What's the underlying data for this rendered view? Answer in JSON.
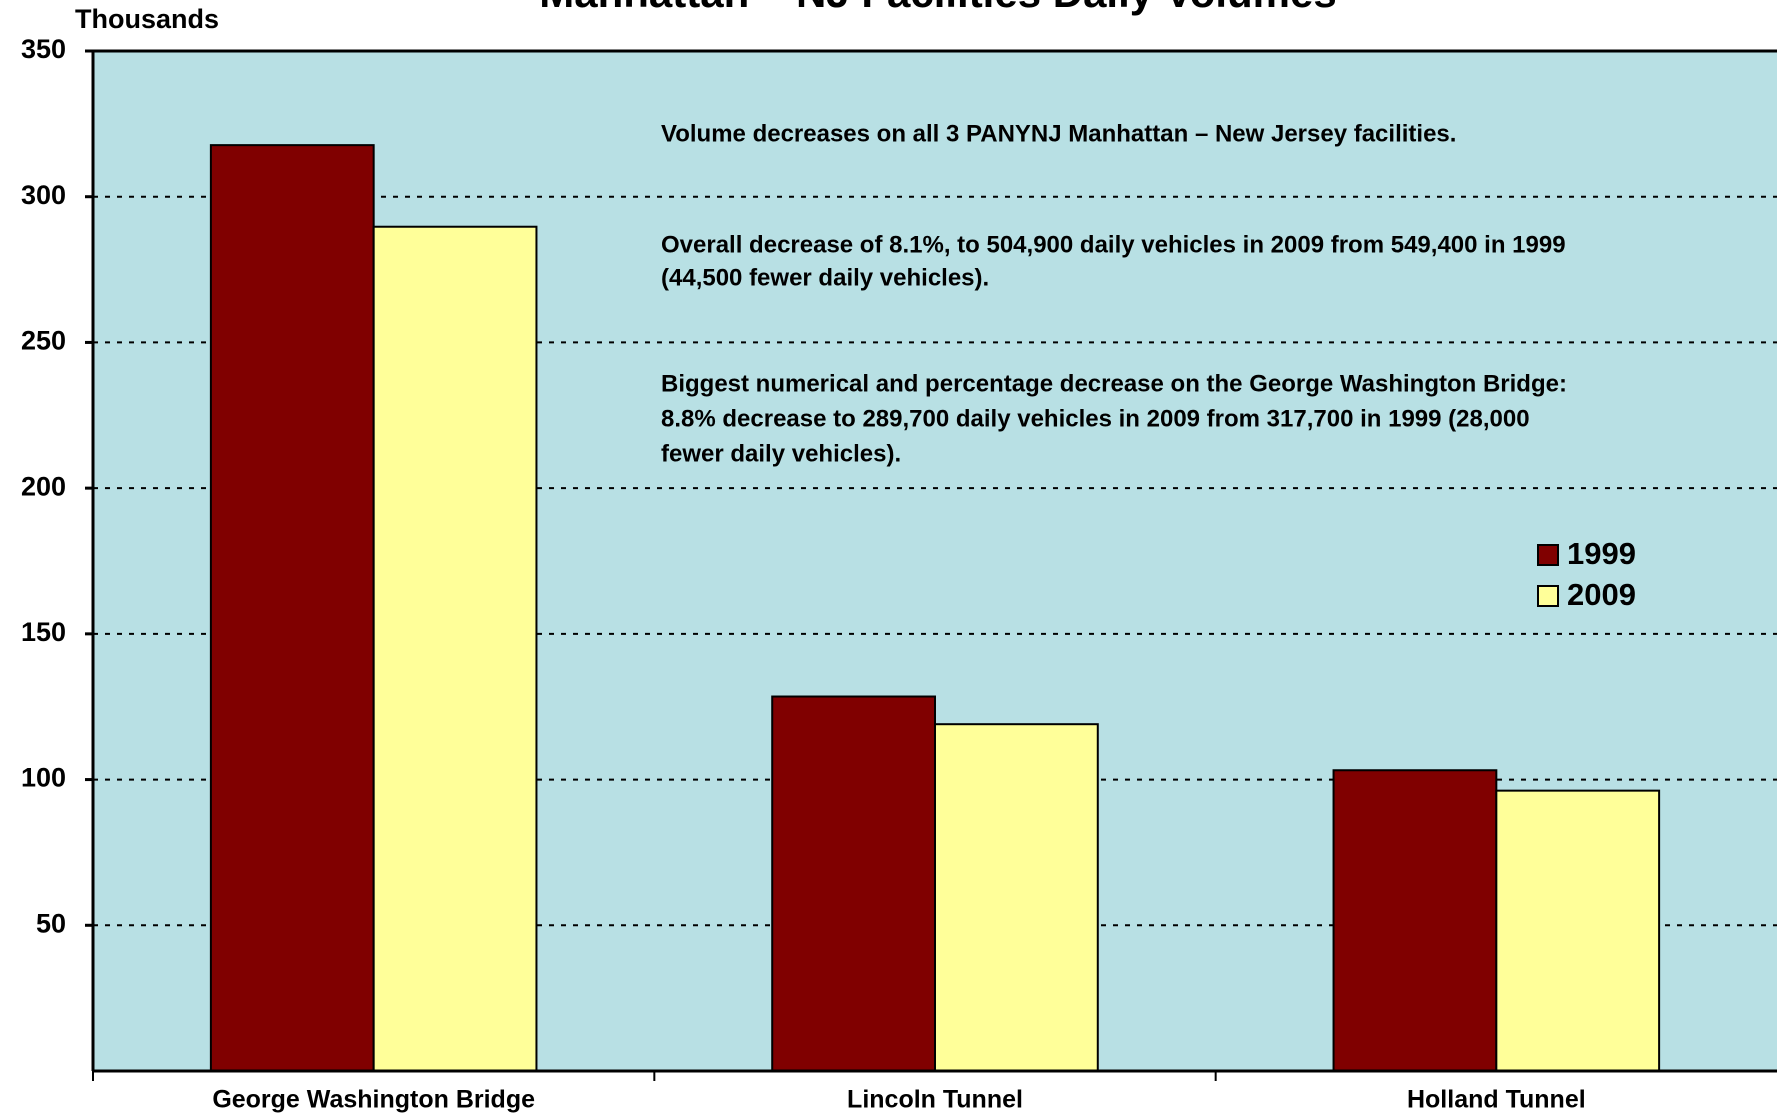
{
  "chart_data": {
    "type": "bar",
    "title": "Manhattan – NJ Facilities Daily Volumes",
    "y_axis_label": "Thousands",
    "categories": [
      "George Washington Bridge",
      "Lincoln Tunnel",
      "Holland Tunnel"
    ],
    "series": [
      {
        "name": "1999",
        "color": "#800000",
        "values": [
          317.7,
          128.5,
          103.2
        ]
      },
      {
        "name": "2009",
        "color": "#ffff99",
        "values": [
          289.7,
          119.0,
          96.2
        ]
      }
    ],
    "ylim": [
      0,
      350
    ],
    "yticks": [
      50,
      100,
      150,
      200,
      250,
      300,
      350
    ],
    "grid": true,
    "background": "#b8e0e4",
    "legend": "right",
    "annotations": [
      [
        "Volume decreases on all 3 PANYNJ Manhattan – New Jersey facilities."
      ],
      [
        "Overall decrease of 8.1%, to 504,900 daily vehicles in 2009 from 549,400 in 1999",
        "(44,500 fewer daily vehicles)."
      ],
      [
        "Biggest numerical and percentage decrease on the George Washington Bridge:",
        "8.8% decrease to 289,700 daily vehicles in 2009 from 317,700 in 1999 (28,000",
        "fewer daily vehicles)."
      ]
    ]
  }
}
